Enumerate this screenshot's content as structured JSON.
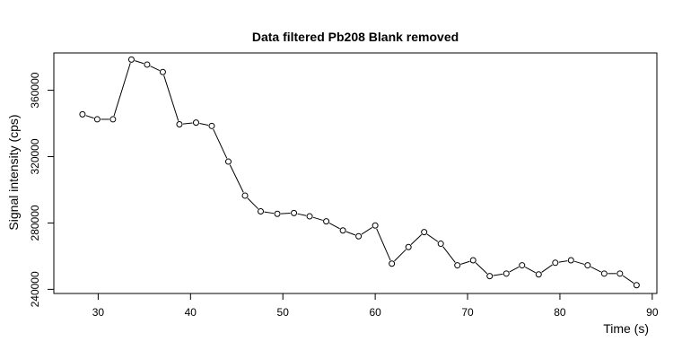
{
  "chart_data": {
    "type": "line",
    "title": "Data filtered Pb208 Blank removed",
    "xlabel": "Time (s)",
    "ylabel": "Signal intensity (cps)",
    "xlim": [
      25.2,
      90.5
    ],
    "ylim": [
      237500,
      382500
    ],
    "x_ticks": [
      30,
      40,
      50,
      60,
      70,
      80,
      90
    ],
    "y_ticks": [
      240000,
      280000,
      320000,
      360000
    ],
    "grid": false,
    "legend": "none",
    "marker": "open-circle",
    "series": [
      {
        "x": [
          28.3,
          29.9,
          31.6,
          33.6,
          35.3,
          37.0,
          38.8,
          40.6,
          42.3,
          44.1,
          45.9,
          47.6,
          49.4,
          51.2,
          52.9,
          54.7,
          56.5,
          58.2,
          60.0,
          61.8,
          63.6,
          65.3,
          67.1,
          68.9,
          70.6,
          72.4,
          74.2,
          75.9,
          77.7,
          79.5,
          81.2,
          83.0,
          84.8,
          86.5,
          88.3
        ],
        "y": [
          345500,
          342500,
          342500,
          378500,
          375500,
          371000,
          339500,
          340500,
          338500,
          317000,
          296500,
          287000,
          285500,
          286000,
          284000,
          281000,
          275500,
          272000,
          278500,
          255500,
          265500,
          274500,
          267500,
          254500,
          257500,
          248000,
          249500,
          254500,
          249000,
          256000,
          257500,
          254500,
          249500,
          249500,
          242500
        ]
      }
    ],
    "colors": {
      "line": "#000000",
      "marker_stroke": "#000000",
      "marker_fill": "#ffffff",
      "frame": "#000000"
    }
  }
}
